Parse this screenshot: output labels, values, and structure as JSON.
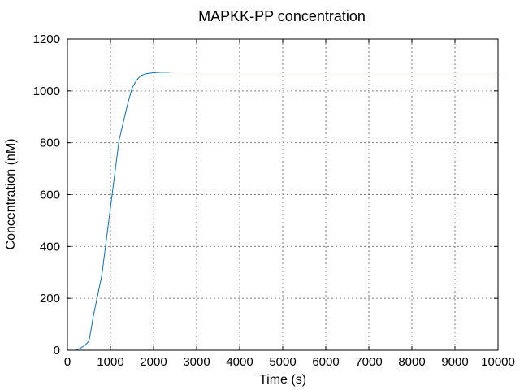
{
  "chart_data": {
    "type": "line",
    "title": "MAPKK-PP concentration",
    "xlabel": "Time (s)",
    "ylabel": "Concentration (nM)",
    "xlim": [
      0,
      10000
    ],
    "ylim": [
      0,
      1200
    ],
    "x_ticks": [
      0,
      1000,
      2000,
      3000,
      4000,
      5000,
      6000,
      7000,
      8000,
      9000,
      10000
    ],
    "y_ticks": [
      0,
      200,
      400,
      600,
      800,
      1000,
      1200
    ],
    "x_tick_labels": [
      "0",
      "1000",
      "2000",
      "3000",
      "4000",
      "5000",
      "6000",
      "7000",
      "8000",
      "9000",
      "10000"
    ],
    "y_tick_labels": [
      "0",
      "200",
      "400",
      "600",
      "800",
      "1000",
      "1200"
    ],
    "grid": true,
    "series": [
      {
        "color": "#0072bd",
        "x": [
          0,
          200,
          300,
          400,
          500,
          550,
          600,
          700,
          800,
          900,
          1000,
          1100,
          1200,
          1300,
          1400,
          1500,
          1600,
          1700,
          1800,
          1900,
          2000,
          2100,
          2200,
          2300,
          2500,
          2700,
          3000,
          4000,
          5000,
          6000,
          7000,
          8000,
          9000,
          10000
        ],
        "y": [
          0,
          0,
          8,
          18,
          35,
          80,
          130,
          210,
          290,
          420,
          550,
          680,
          810,
          880,
          950,
          1010,
          1040,
          1058,
          1065,
          1068,
          1070,
          1071,
          1072,
          1072,
          1073,
          1073,
          1073,
          1073,
          1073,
          1073,
          1073,
          1073,
          1073,
          1073
        ]
      }
    ]
  }
}
